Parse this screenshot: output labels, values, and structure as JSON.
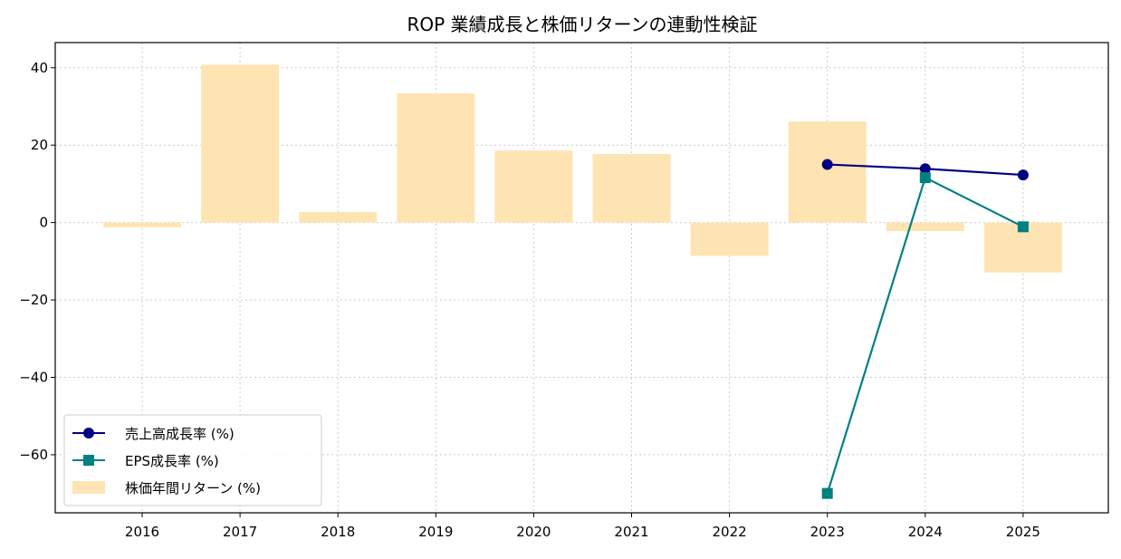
{
  "chart_data": {
    "type": "bar",
    "title": "ROP 業績成長と株価リターンの連動性検証",
    "xlabel": "",
    "ylabel": "",
    "categories": [
      "2016",
      "2017",
      "2018",
      "2019",
      "2020",
      "2021",
      "2022",
      "2023",
      "2024",
      "2025"
    ],
    "ylim": [
      -75,
      46.5
    ],
    "yticks": [
      40,
      20,
      0,
      -20,
      -40,
      -60
    ],
    "ytick_labels": [
      "40",
      "20",
      "0",
      "−20",
      "−40",
      "−60"
    ],
    "grid": true,
    "legend_position": "lower-left",
    "bar_series": {
      "name": "株価年間リターン (%)",
      "color": "#ffe4b3",
      "values": [
        -1.2,
        40.8,
        2.7,
        33.4,
        18.6,
        17.7,
        -8.6,
        26.1,
        -2.2,
        -12.9
      ]
    },
    "line_series": [
      {
        "name": "売上高成長率 (%)",
        "color": "#000080",
        "marker": "circle",
        "x": [
          "2023",
          "2024",
          "2025"
        ],
        "values": [
          15.0,
          13.9,
          12.3
        ]
      },
      {
        "name": "EPS成長率 (%)",
        "color": "#008080",
        "marker": "square",
        "x": [
          "2023",
          "2024",
          "2025"
        ],
        "values": [
          -70.0,
          11.6,
          -1.1
        ]
      }
    ]
  }
}
